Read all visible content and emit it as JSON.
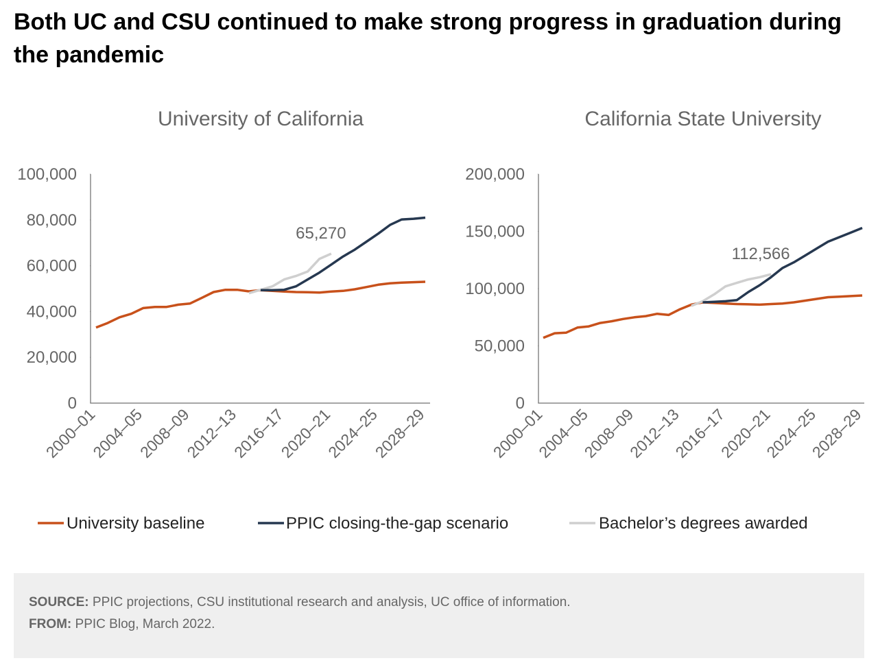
{
  "title": "Both UC and CSU continued to make strong progress in graduation during the pandemic",
  "chart_data": [
    {
      "type": "line",
      "title": "University of California",
      "categories": [
        "2000–01",
        null,
        null,
        null,
        "2004–05",
        null,
        null,
        null,
        "2008–09",
        null,
        null,
        null,
        "2012–13",
        null,
        null,
        null,
        "2016–17",
        null,
        null,
        null,
        "2020–21",
        null,
        null,
        null,
        "2024–25",
        null,
        null,
        null,
        "2028–29"
      ],
      "ylim": [
        0,
        100000
      ],
      "yticks": [
        0,
        {
          "value": 20000,
          "label": "20,000"
        },
        {
          "value": 40000,
          "label": "40,000"
        },
        {
          "value": 60000,
          "label": "60,000"
        },
        {
          "value": 80000,
          "label": "80,000"
        },
        {
          "value": 100000,
          "label": "100,000"
        }
      ],
      "annotation": "65,270",
      "series": [
        {
          "name": "University baseline",
          "color": "#c8511b",
          "values": [
            33000,
            35000,
            37500,
            39000,
            41500,
            42000,
            42000,
            43000,
            43500,
            46000,
            48500,
            49500,
            49500,
            48800,
            49300,
            49000,
            48700,
            48500,
            48400,
            48300,
            48700,
            49000,
            49700,
            50700,
            51700,
            52300,
            52600,
            52800,
            53000
          ]
        },
        {
          "name": "PPIC closing-the-gap scenario",
          "color": "#263850",
          "values": [
            null,
            null,
            null,
            null,
            null,
            null,
            null,
            null,
            null,
            null,
            null,
            null,
            null,
            null,
            49300,
            49300,
            49500,
            51000,
            54000,
            57000,
            60500,
            64000,
            67000,
            70500,
            74000,
            77800,
            80200,
            80500,
            81000
          ]
        },
        {
          "name": "Bachelor’s degrees awarded",
          "color": "#cfcfcf",
          "values": [
            null,
            null,
            null,
            null,
            null,
            null,
            null,
            null,
            null,
            null,
            null,
            null,
            null,
            48000,
            49500,
            51000,
            54000,
            55500,
            57500,
            63000,
            65270,
            null,
            null,
            null,
            null,
            null,
            null,
            null,
            null
          ]
        }
      ]
    },
    {
      "type": "line",
      "title": "California State University",
      "categories": [
        "2000–01",
        null,
        null,
        null,
        "2004–05",
        null,
        null,
        null,
        "2008–09",
        null,
        null,
        null,
        "2012–13",
        null,
        null,
        null,
        "2016–17",
        null,
        null,
        null,
        "2020–21",
        null,
        null,
        null,
        "2024–25",
        null,
        null,
        null,
        "2028–29"
      ],
      "ylim": [
        0,
        200000
      ],
      "yticks": [
        0,
        {
          "value": 50000,
          "label": "50,000"
        },
        {
          "value": 100000,
          "label": "100,000"
        },
        {
          "value": 150000,
          "label": "150,000"
        },
        {
          "value": 200000,
          "label": "200,000"
        }
      ],
      "annotation": "112,566",
      "series": [
        {
          "name": "University baseline",
          "color": "#c8511b",
          "values": [
            57000,
            61000,
            61500,
            66000,
            67000,
            70000,
            71500,
            73500,
            75000,
            76000,
            78000,
            77000,
            82000,
            86000,
            88000,
            87500,
            87000,
            86500,
            86300,
            86000,
            86500,
            87000,
            88000,
            89500,
            91000,
            92500,
            93000,
            93500,
            94000
          ]
        },
        {
          "name": "PPIC closing-the-gap scenario",
          "color": "#263850",
          "values": [
            null,
            null,
            null,
            null,
            null,
            null,
            null,
            null,
            null,
            null,
            null,
            null,
            null,
            null,
            88000,
            88500,
            89000,
            90000,
            97000,
            103000,
            110000,
            118000,
            123000,
            129000,
            135000,
            141000,
            145000,
            149000,
            153000
          ]
        },
        {
          "name": "Bachelor’s degrees awarded",
          "color": "#cfcfcf",
          "values": [
            null,
            null,
            null,
            null,
            null,
            null,
            null,
            null,
            null,
            null,
            null,
            null,
            null,
            85000,
            89000,
            95000,
            102000,
            105000,
            108000,
            110000,
            112566,
            null,
            null,
            null,
            null,
            null,
            null,
            null,
            null
          ]
        }
      ]
    }
  ],
  "footer": {
    "source_label": "SOURCE:",
    "source": "PPIC projections, CSU institutional research and analysis, UC office of information.",
    "from_label": "FROM:",
    "from": "PPIC Blog, March 2022."
  }
}
